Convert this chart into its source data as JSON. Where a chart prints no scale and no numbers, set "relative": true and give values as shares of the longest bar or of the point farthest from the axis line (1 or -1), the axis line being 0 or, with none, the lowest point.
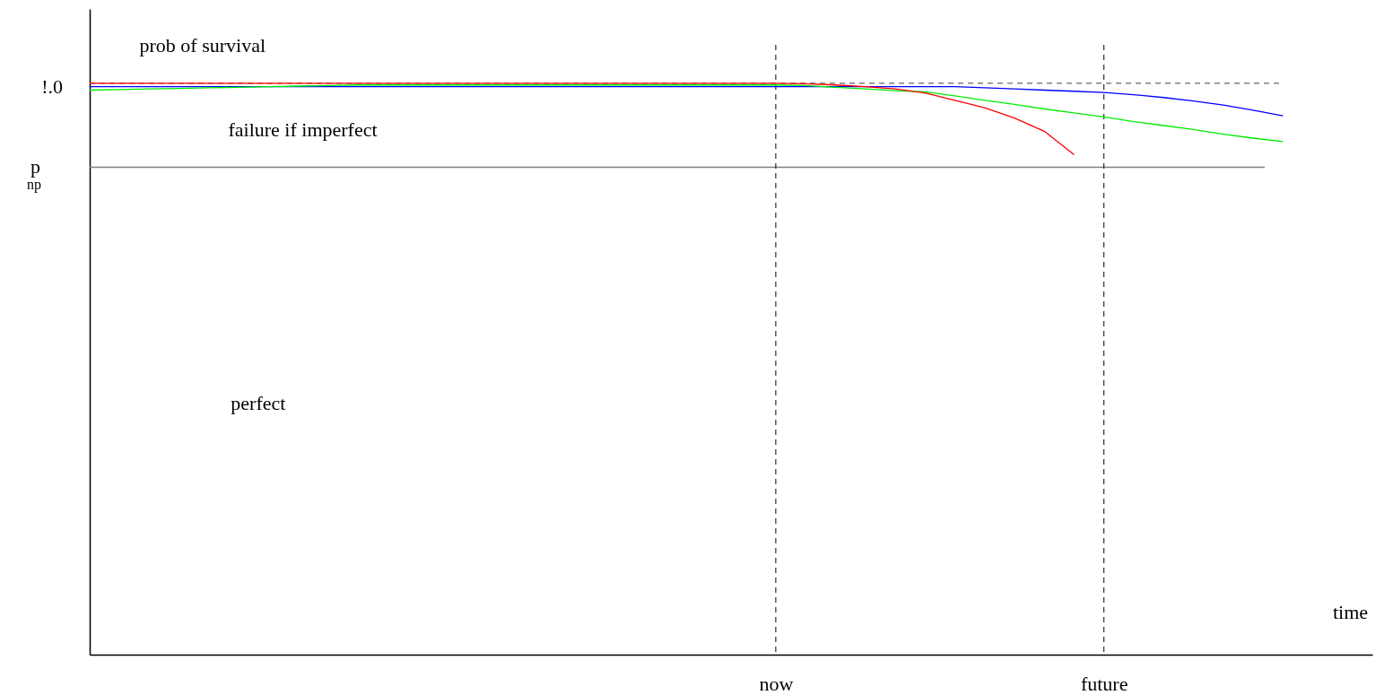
{
  "chart_data": {
    "type": "line",
    "relative": true,
    "xlabel": "time",
    "ylabel": "prob of survival",
    "categories": [
      null,
      null,
      null,
      null,
      null,
      null,
      null,
      null,
      null,
      null,
      null,
      null,
      null,
      null,
      null,
      null,
      null,
      null,
      null,
      null,
      null,
      null,
      null,
      "now",
      null,
      null,
      null,
      null,
      null,
      null,
      null,
      null,
      null,
      null,
      "future",
      null,
      null,
      null,
      null,
      null,
      null,
      null,
      null,
      null
    ],
    "tick_labels": "x",
    "grid": false,
    "legend": false,
    "marker": "none",
    "line_style": "solid",
    "annotations": [
      "failure if imperfect",
      "perfect",
      "!.0"
    ],
    "ref_lines": [
      {
        "axis": "y",
        "value": 1.0,
        "color": "#808080",
        "line_style": "dashed"
      },
      {
        "axis": "y",
        "value": 0.853,
        "label": "p$_{np}$",
        "color": "#808080",
        "line_style": "solid"
      },
      {
        "axis": "x",
        "value": "now",
        "color": "#000000",
        "line_style": "dashed"
      },
      {
        "axis": "x",
        "value": "future",
        "color": "#000000",
        "line_style": "dashed"
      }
    ],
    "series": [
      {
        "color": "#0000ff",
        "values": [
          0.994,
          0.994,
          0.994,
          0.994,
          0.994,
          0.994,
          0.994,
          0.994,
          0.994,
          0.994,
          0.994,
          0.994,
          0.994,
          0.994,
          0.994,
          0.994,
          0.994,
          0.994,
          0.994,
          0.994,
          0.994,
          0.994,
          0.994,
          0.994,
          0.994,
          0.994,
          0.994,
          0.994,
          0.994,
          0.994,
          0.992,
          0.99,
          0.988,
          0.986,
          0.984,
          0.98,
          0.975,
          0.969,
          0.962,
          0.953,
          0.943,
          null,
          null,
          null
        ]
      },
      {
        "color": "#00ee00",
        "values": [
          0.988,
          0.989,
          0.99,
          0.991,
          0.992,
          0.993,
          0.994,
          0.995,
          0.996,
          0.997,
          0.997,
          0.997,
          0.997,
          0.997,
          0.997,
          0.997,
          0.997,
          0.997,
          0.997,
          0.997,
          0.997,
          0.997,
          0.997,
          0.997,
          0.996,
          0.993,
          0.99,
          0.987,
          0.985,
          0.978,
          0.97,
          0.963,
          0.955,
          0.948,
          0.941,
          0.933,
          0.926,
          0.919,
          0.911,
          0.904,
          0.898,
          null,
          null,
          null
        ]
      },
      {
        "color": "#ff0000",
        "values": [
          1.0,
          1.0,
          1.0,
          1.0,
          1.0,
          1.0,
          1.0,
          1.0,
          1.0,
          1.0,
          1.0,
          1.0,
          1.0,
          1.0,
          1.0,
          1.0,
          1.0,
          1.0,
          1.0,
          1.0,
          1.0,
          1.0,
          1.0,
          1.0,
          0.999,
          0.997,
          0.994,
          0.99,
          0.983,
          0.97,
          0.957,
          0.939,
          0.916,
          0.875,
          null,
          null,
          null,
          null,
          null,
          null,
          null,
          null,
          null,
          null
        ]
      }
    ]
  }
}
